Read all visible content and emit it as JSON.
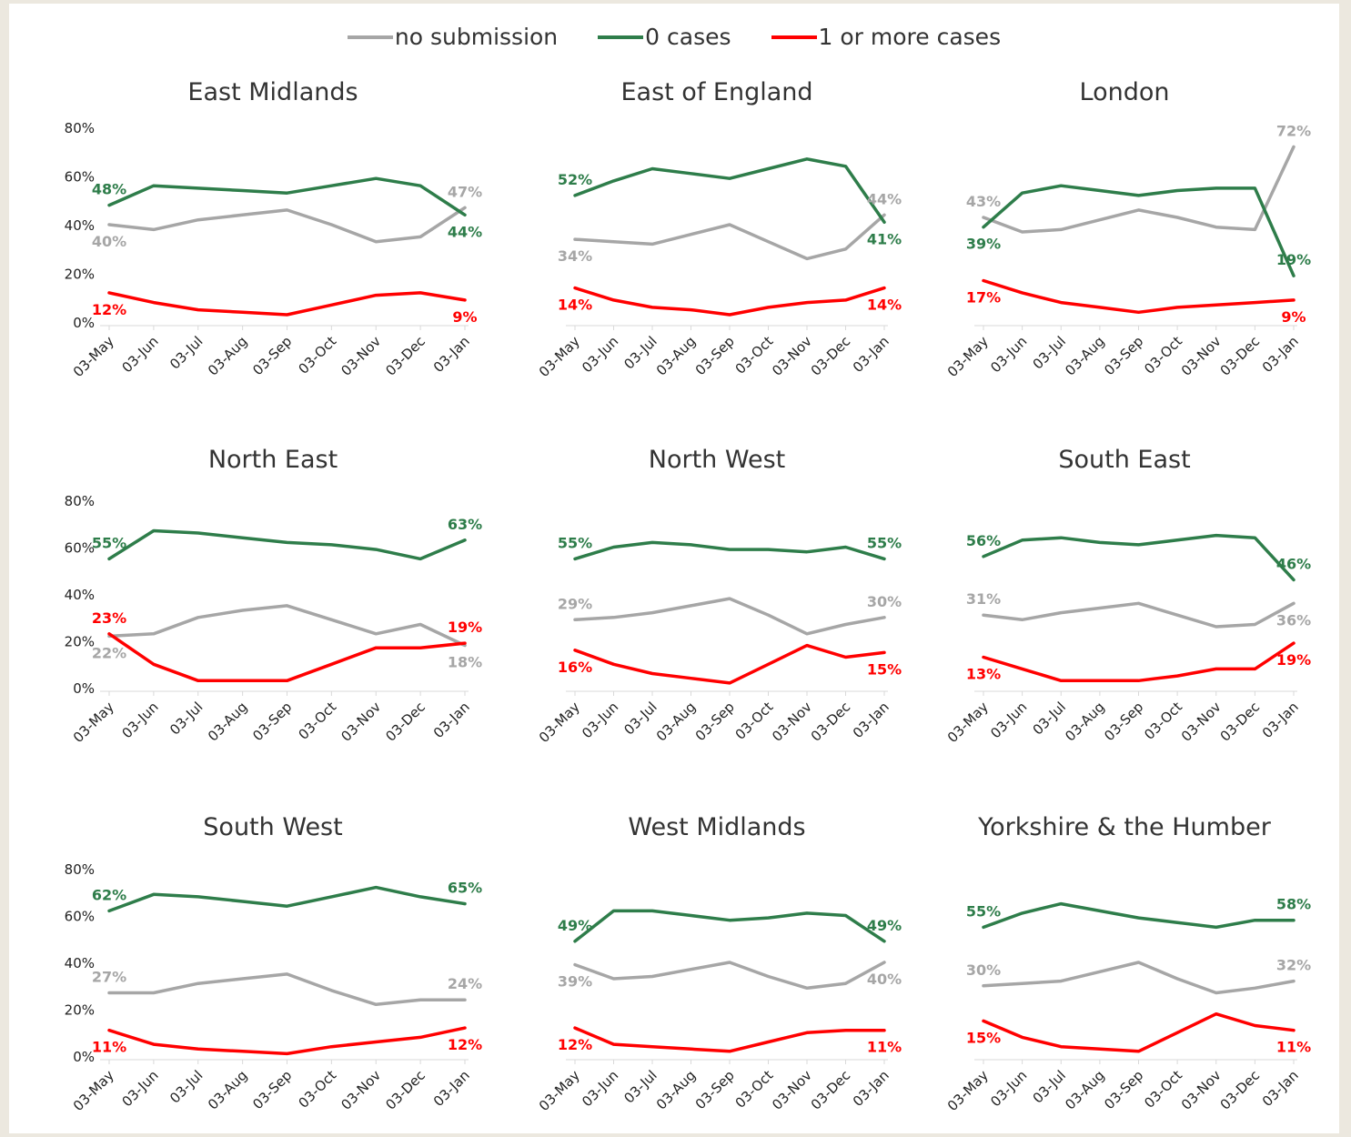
{
  "legend": {
    "items": [
      {
        "label": "no submission",
        "color": "#a6a6a6"
      },
      {
        "label": "0 cases",
        "color": "#2e7d4a"
      },
      {
        "label": "1 or more cases",
        "color": "#ff0000"
      }
    ]
  },
  "chart_data": [
    {
      "type": "line",
      "title": "East Midlands",
      "categories": [
        "03-May",
        "03-Jun",
        "03-Jul",
        "03-Aug",
        "03-Sep",
        "03-Oct",
        "03-Nov",
        "03-Dec",
        "03-Jan"
      ],
      "ylim": [
        0,
        0.8
      ],
      "yticks": [
        "0%",
        "20%",
        "40%",
        "60%",
        "80%"
      ],
      "series": [
        {
          "name": "no submission",
          "values": [
            0.4,
            0.38,
            0.42,
            0.44,
            0.46,
            0.4,
            0.33,
            0.35,
            0.47
          ],
          "labels": [
            "40%",
            "47%"
          ]
        },
        {
          "name": "0 cases",
          "values": [
            0.48,
            0.56,
            0.55,
            0.54,
            0.53,
            0.56,
            0.59,
            0.56,
            0.44
          ],
          "labels": [
            "48%",
            "44%"
          ]
        },
        {
          "name": "1 or more cases",
          "values": [
            0.12,
            0.08,
            0.05,
            0.04,
            0.03,
            0.07,
            0.11,
            0.12,
            0.09
          ],
          "labels": [
            "12%",
            "9%"
          ]
        }
      ]
    },
    {
      "type": "line",
      "title": "East of England",
      "categories": [
        "03-May",
        "03-Jun",
        "03-Jul",
        "03-Aug",
        "03-Sep",
        "03-Oct",
        "03-Nov",
        "03-Dec",
        "03-Jan"
      ],
      "ylim": [
        0,
        0.8
      ],
      "yticks": [],
      "series": [
        {
          "name": "no submission",
          "values": [
            0.34,
            0.33,
            0.32,
            0.36,
            0.4,
            0.33,
            0.26,
            0.3,
            0.44
          ],
          "labels": [
            "34%",
            "44%"
          ]
        },
        {
          "name": "0 cases",
          "values": [
            0.52,
            0.58,
            0.63,
            0.61,
            0.59,
            0.63,
            0.67,
            0.64,
            0.41
          ],
          "labels": [
            "52%",
            "41%"
          ]
        },
        {
          "name": "1 or more cases",
          "values": [
            0.14,
            0.09,
            0.06,
            0.05,
            0.03,
            0.06,
            0.08,
            0.09,
            0.14
          ],
          "labels": [
            "14%",
            "14%"
          ]
        }
      ]
    },
    {
      "type": "line",
      "title": "London",
      "categories": [
        "03-May",
        "03-Jun",
        "03-Jul",
        "03-Aug",
        "03-Sep",
        "03-Oct",
        "03-Nov",
        "03-Dec",
        "03-Jan"
      ],
      "ylim": [
        0,
        0.8
      ],
      "yticks": [],
      "series": [
        {
          "name": "no submission",
          "values": [
            0.43,
            0.37,
            0.38,
            0.42,
            0.46,
            0.43,
            0.39,
            0.38,
            0.72
          ],
          "labels": [
            "43%",
            "72%"
          ]
        },
        {
          "name": "0 cases",
          "values": [
            0.39,
            0.53,
            0.56,
            0.54,
            0.52,
            0.54,
            0.55,
            0.55,
            0.19
          ],
          "labels": [
            "39%",
            "19%"
          ]
        },
        {
          "name": "1 or more cases",
          "values": [
            0.17,
            0.12,
            0.08,
            0.06,
            0.04,
            0.06,
            0.07,
            0.08,
            0.09
          ],
          "labels": [
            "17%",
            "9%"
          ]
        }
      ]
    },
    {
      "type": "line",
      "title": "North East",
      "categories": [
        "03-May",
        "03-Jun",
        "03-Jul",
        "03-Aug",
        "03-Sep",
        "03-Oct",
        "03-Nov",
        "03-Dec",
        "03-Jan"
      ],
      "ylim": [
        0,
        0.8
      ],
      "yticks": [
        "0%",
        "20%",
        "40%",
        "60%",
        "80%"
      ],
      "series": [
        {
          "name": "no submission",
          "values": [
            0.22,
            0.23,
            0.3,
            0.33,
            0.35,
            0.29,
            0.23,
            0.27,
            0.18
          ],
          "labels": [
            "22%",
            "18%"
          ]
        },
        {
          "name": "0 cases",
          "values": [
            0.55,
            0.67,
            0.66,
            0.64,
            0.62,
            0.61,
            0.59,
            0.55,
            0.63
          ],
          "labels": [
            "55%",
            "63%"
          ]
        },
        {
          "name": "1 or more cases",
          "values": [
            0.23,
            0.1,
            0.03,
            0.03,
            0.03,
            0.1,
            0.17,
            0.17,
            0.19
          ],
          "labels": [
            "23%",
            "19%"
          ]
        }
      ]
    },
    {
      "type": "line",
      "title": "North West",
      "categories": [
        "03-May",
        "03-Jun",
        "03-Jul",
        "03-Aug",
        "03-Sep",
        "03-Oct",
        "03-Nov",
        "03-Dec",
        "03-Jan"
      ],
      "ylim": [
        0,
        0.8
      ],
      "yticks": [],
      "series": [
        {
          "name": "no submission",
          "values": [
            0.29,
            0.3,
            0.32,
            0.35,
            0.38,
            0.31,
            0.23,
            0.27,
            0.3
          ],
          "labels": [
            "29%",
            "30%"
          ]
        },
        {
          "name": "0 cases",
          "values": [
            0.55,
            0.6,
            0.62,
            0.61,
            0.59,
            0.59,
            0.58,
            0.6,
            0.55
          ],
          "labels": [
            "55%",
            "55%"
          ]
        },
        {
          "name": "1 or more cases",
          "values": [
            0.16,
            0.1,
            0.06,
            0.04,
            0.02,
            0.1,
            0.18,
            0.13,
            0.15
          ],
          "labels": [
            "16%",
            "15%"
          ]
        }
      ]
    },
    {
      "type": "line",
      "title": "South East",
      "categories": [
        "03-May",
        "03-Jun",
        "03-Jul",
        "03-Aug",
        "03-Sep",
        "03-Oct",
        "03-Nov",
        "03-Dec",
        "03-Jan"
      ],
      "ylim": [
        0,
        0.8
      ],
      "yticks": [],
      "series": [
        {
          "name": "no submission",
          "values": [
            0.31,
            0.29,
            0.32,
            0.34,
            0.36,
            0.31,
            0.26,
            0.27,
            0.36
          ],
          "labels": [
            "31%",
            "36%"
          ]
        },
        {
          "name": "0 cases",
          "values": [
            0.56,
            0.63,
            0.64,
            0.62,
            0.61,
            0.63,
            0.65,
            0.64,
            0.46
          ],
          "labels": [
            "56%",
            "46%"
          ]
        },
        {
          "name": "1 or more cases",
          "values": [
            0.13,
            0.08,
            0.03,
            0.03,
            0.03,
            0.05,
            0.08,
            0.08,
            0.19
          ],
          "labels": [
            "13%",
            "19%"
          ]
        }
      ]
    },
    {
      "type": "line",
      "title": "South West",
      "categories": [
        "03-May",
        "03-Jun",
        "03-Jul",
        "03-Aug",
        "03-Sep",
        "03-Oct",
        "03-Nov",
        "03-Dec",
        "03-Jan"
      ],
      "ylim": [
        0,
        0.8
      ],
      "yticks": [
        "0%",
        "20%",
        "40%",
        "60%",
        "80%"
      ],
      "series": [
        {
          "name": "no submission",
          "values": [
            0.27,
            0.27,
            0.31,
            0.33,
            0.35,
            0.28,
            0.22,
            0.24,
            0.24
          ],
          "labels": [
            "27%",
            "24%"
          ]
        },
        {
          "name": "0 cases",
          "values": [
            0.62,
            0.69,
            0.68,
            0.66,
            0.64,
            0.68,
            0.72,
            0.68,
            0.65
          ],
          "labels": [
            "62%",
            "65%"
          ]
        },
        {
          "name": "1 or more cases",
          "values": [
            0.11,
            0.05,
            0.03,
            0.02,
            0.01,
            0.04,
            0.06,
            0.08,
            0.12
          ],
          "labels": [
            "11%",
            "12%"
          ]
        }
      ]
    },
    {
      "type": "line",
      "title": "West Midlands",
      "categories": [
        "03-May",
        "03-Jun",
        "03-Jul",
        "03-Aug",
        "03-Sep",
        "03-Oct",
        "03-Nov",
        "03-Dec",
        "03-Jan"
      ],
      "ylim": [
        0,
        0.8
      ],
      "yticks": [],
      "series": [
        {
          "name": "no submission",
          "values": [
            0.39,
            0.33,
            0.34,
            0.37,
            0.4,
            0.34,
            0.29,
            0.31,
            0.4
          ],
          "labels": [
            "39%",
            "40%"
          ]
        },
        {
          "name": "0 cases",
          "values": [
            0.49,
            0.62,
            0.62,
            0.6,
            0.58,
            0.59,
            0.61,
            0.6,
            0.49
          ],
          "labels": [
            "49%",
            "49%"
          ]
        },
        {
          "name": "1 or more cases",
          "values": [
            0.12,
            0.05,
            0.04,
            0.03,
            0.02,
            0.06,
            0.1,
            0.11,
            0.11
          ],
          "labels": [
            "12%",
            "11%"
          ]
        }
      ]
    },
    {
      "type": "line",
      "title": "Yorkshire & the Humber",
      "categories": [
        "03-May",
        "03-Jun",
        "03-Jul",
        "03-Aug",
        "03-Sep",
        "03-Oct",
        "03-Nov",
        "03-Dec",
        "03-Jan"
      ],
      "ylim": [
        0,
        0.8
      ],
      "yticks": [],
      "series": [
        {
          "name": "no submission",
          "values": [
            0.3,
            0.31,
            0.32,
            0.36,
            0.4,
            0.33,
            0.27,
            0.29,
            0.32
          ],
          "labels": [
            "30%",
            "32%"
          ]
        },
        {
          "name": "0 cases",
          "values": [
            0.55,
            0.61,
            0.65,
            0.62,
            0.59,
            0.57,
            0.55,
            0.58,
            0.58
          ],
          "labels": [
            "55%",
            "58%"
          ]
        },
        {
          "name": "1 or more cases",
          "values": [
            0.15,
            0.08,
            0.04,
            0.03,
            0.02,
            0.1,
            0.18,
            0.13,
            0.11
          ],
          "labels": [
            "15%",
            "11%"
          ]
        }
      ]
    }
  ]
}
